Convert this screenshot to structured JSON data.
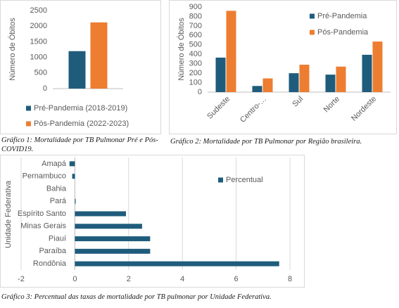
{
  "chart_data": [
    {
      "type": "bar",
      "caption": "Gráfico 1: Mortalidade por TB Pulmonar Pré e Pós- COVID19.",
      "ylabel": "Número de Óbitos",
      "categories": [
        null
      ],
      "series": [
        {
          "name": "Pré-Pandemia (2018-2019)",
          "color": "#1f5c7c",
          "values": [
            1200
          ]
        },
        {
          "name": "Pós-Pandemia (2022-2023)",
          "color": "#ed7d31",
          "values": [
            2120
          ]
        }
      ],
      "ylim": [
        0,
        2500
      ],
      "yticks": [
        0,
        500,
        1000,
        1500,
        2000,
        2500
      ],
      "grid": false,
      "legend": "bottom"
    },
    {
      "type": "bar",
      "caption": "Gráfico 2: Mortalidade por TB Pulmonar por Região brasileira.",
      "ylabel": "Número de Óbitos",
      "categories": [
        "Sudeste",
        "Centro-…",
        "Sul",
        "Norte",
        "Nordeste"
      ],
      "series": [
        {
          "name": "Pré-Pandemia",
          "color": "#1f5c7c",
          "values": [
            365,
            65,
            200,
            185,
            395
          ]
        },
        {
          "name": "Pós-Pandemia",
          "color": "#ed7d31",
          "values": [
            860,
            145,
            290,
            270,
            535
          ]
        }
      ],
      "ylim": [
        0,
        900
      ],
      "yticks": [
        0,
        100,
        200,
        300,
        400,
        500,
        600,
        700,
        800,
        900
      ],
      "grid": false,
      "legend": "right"
    },
    {
      "type": "hbar",
      "caption": "Gráfico 3: Percentual das taxas de mortalidade por TB pulmonar por Unidade Federativa.",
      "ylabel": "Unidade Federativa",
      "categories": [
        "Amapá",
        "Pernambuco",
        "Bahia",
        "Pará",
        "Espírito Santo",
        "Minas Gerais",
        "Piauí",
        "Paraíba",
        "Rondônia"
      ],
      "series": [
        {
          "name": "Percentual",
          "color": "#1f5c7c",
          "values": [
            -0.2,
            -0.1,
            0,
            0.03,
            1.9,
            2.5,
            2.8,
            2.8,
            7.6
          ]
        }
      ],
      "xlim": [
        -2,
        8
      ],
      "xticks": [
        -2,
        0,
        2,
        4,
        6,
        8
      ],
      "grid": true,
      "legend": "top-right"
    }
  ]
}
